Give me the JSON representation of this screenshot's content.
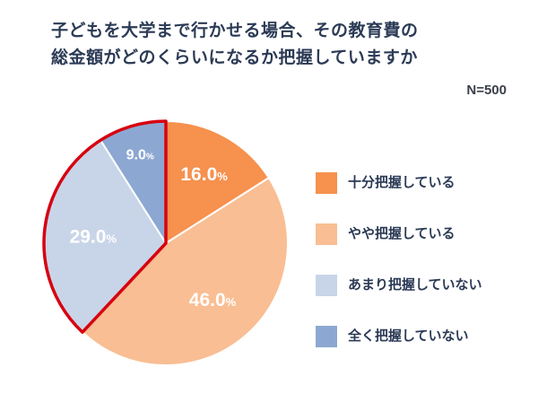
{
  "title": {
    "line1": "子どもを大学まで行かせる場合、その教育費の",
    "line2": "総金額がどのくらいになるか把握していますか",
    "sample_size": "N=500"
  },
  "chart_data": {
    "type": "pie",
    "title": "子どもを大学まで行かせる場合、その教育費の総金額がどのくらいになるか把握していますか",
    "sample_size": "N=500",
    "start_angle_deg": 0,
    "direction": "clockwise",
    "legend_position": "right",
    "slices": [
      {
        "label": "十分把握している",
        "value": 16.0,
        "display": "16.0%",
        "color": "#F6914E",
        "text_color": "#FFFFFF",
        "label_size": 21,
        "label_radius": 0.65
      },
      {
        "label": "やや把握している",
        "value": 46.0,
        "display": "46.0%",
        "color": "#F9BE93",
        "text_color": "#FFFFFF",
        "label_size": 21,
        "label_radius": 0.6
      },
      {
        "label": "あまり把握していない",
        "value": 29.0,
        "display": "29.0%",
        "color": "#C8D5E8",
        "text_color": "#FFFFFF",
        "label_size": 21,
        "label_radius": 0.6
      },
      {
        "label": "全く把握していない",
        "value": 9.0,
        "display": "9.0%",
        "color": "#8CA8D2",
        "text_color": "#FFFFFF",
        "label_size": 16,
        "label_radius": 0.76
      }
    ],
    "highlight": {
      "covers": [
        "あまり把握していない",
        "全く把握していない"
      ],
      "outline_color": "#D7000F"
    }
  }
}
